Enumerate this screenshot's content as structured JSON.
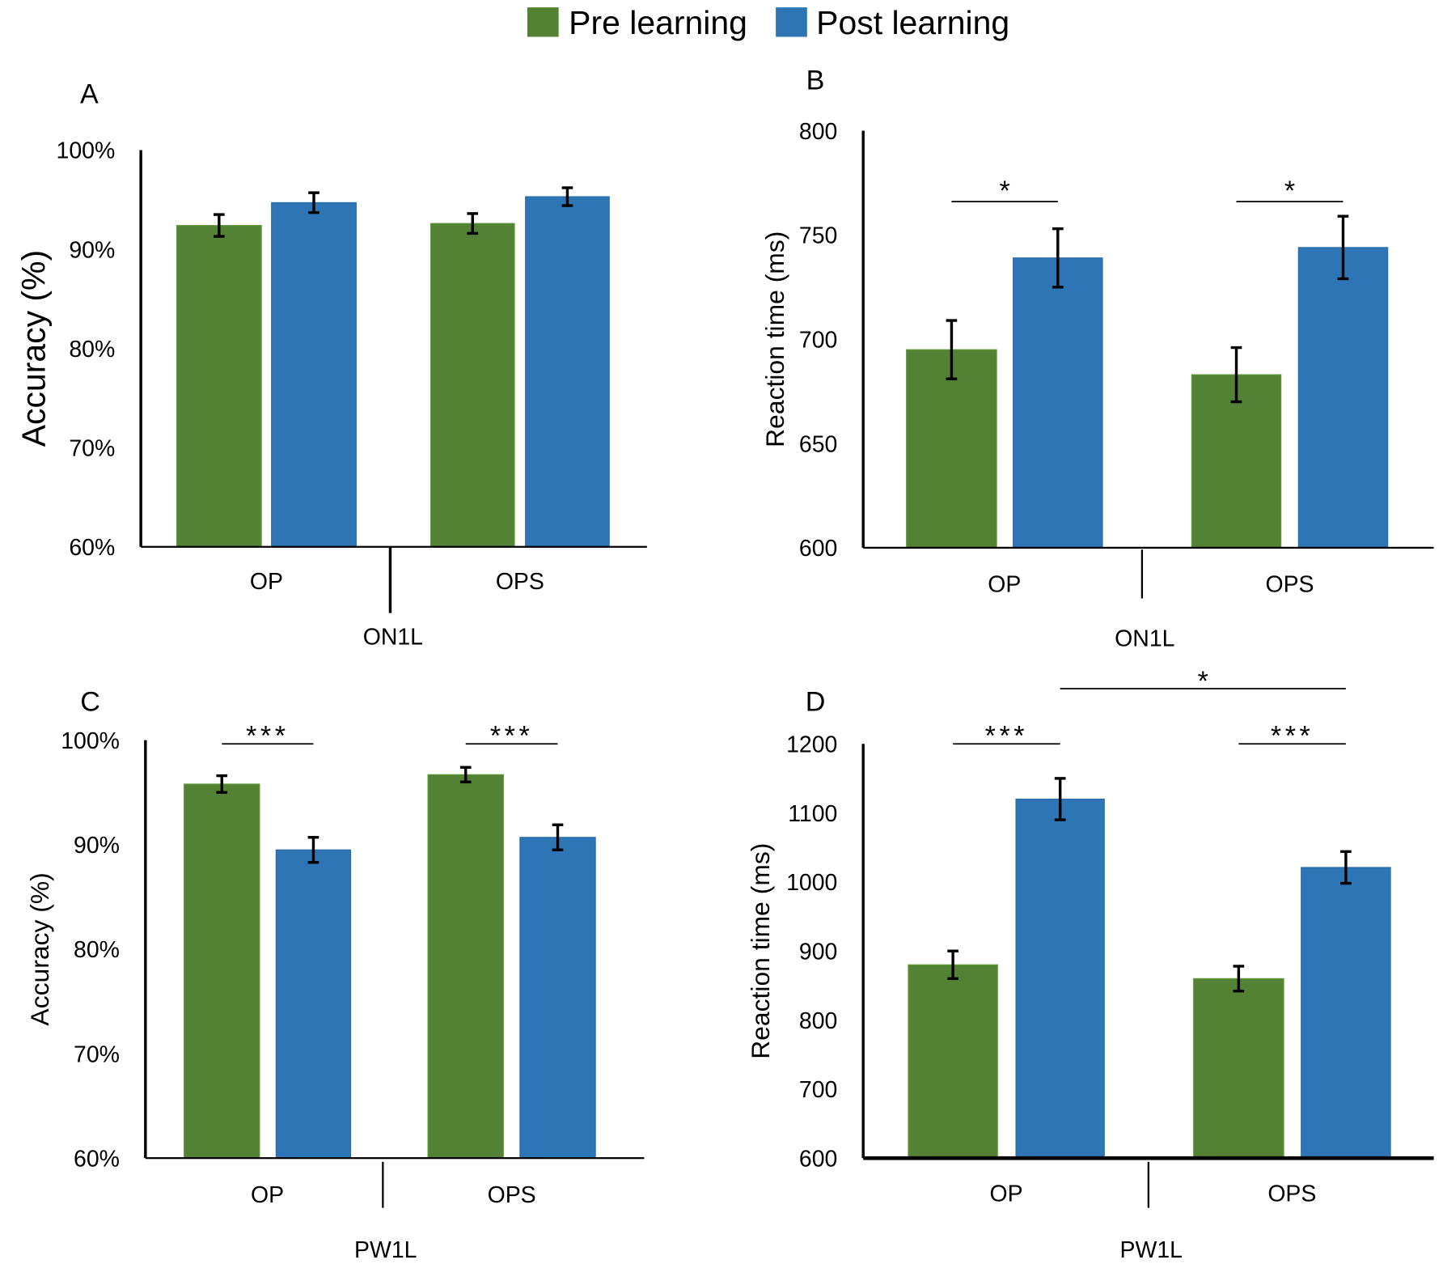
{
  "legend": [
    {
      "label": "Pre learning",
      "color": "#548235"
    },
    {
      "label": "Post learning",
      "color": "#2e75b6"
    }
  ],
  "chart_data": [
    {
      "panel": "A",
      "type": "bar",
      "ylabel": "Accuracy (%)",
      "ylim": [
        60,
        100
      ],
      "yticks": [
        60,
        70,
        80,
        90,
        100
      ],
      "tick_suffix": "%",
      "categories": [
        "OP",
        "OPS"
      ],
      "group_label": "ON1L",
      "series": [
        {
          "name": "Pre learning",
          "values": [
            92.4,
            92.6
          ],
          "errors": [
            1.1,
            1.0
          ]
        },
        {
          "name": "Post learning",
          "values": [
            94.7,
            95.3
          ],
          "errors": [
            1.0,
            0.9
          ]
        }
      ],
      "significance": []
    },
    {
      "panel": "B",
      "type": "bar",
      "ylabel": "Reaction time (ms)",
      "ylim": [
        600,
        800
      ],
      "yticks": [
        600,
        650,
        700,
        750,
        800
      ],
      "tick_suffix": "",
      "categories": [
        "OP",
        "OPS"
      ],
      "group_label": "ON1L",
      "series": [
        {
          "name": "Pre learning",
          "values": [
            695,
            683
          ],
          "errors": [
            14,
            13
          ]
        },
        {
          "name": "Post learning",
          "values": [
            739,
            744
          ],
          "errors": [
            14,
            15
          ]
        }
      ],
      "significance": [
        {
          "label": "*",
          "type": "within",
          "category": 0
        },
        {
          "label": "*",
          "type": "within",
          "category": 1
        }
      ]
    },
    {
      "panel": "C",
      "type": "bar",
      "ylabel": "Accuracy (%)",
      "ylim": [
        60,
        100
      ],
      "yticks": [
        60,
        70,
        80,
        90,
        100
      ],
      "tick_suffix": "%",
      "categories": [
        "OP",
        "OPS"
      ],
      "group_label": "PW1L",
      "series": [
        {
          "name": "Pre learning",
          "values": [
            95.8,
            96.7
          ],
          "errors": [
            0.8,
            0.7
          ]
        },
        {
          "name": "Post learning",
          "values": [
            89.5,
            90.7
          ],
          "errors": [
            1.2,
            1.2
          ]
        }
      ],
      "significance": [
        {
          "label": "***",
          "type": "within",
          "category": 0
        },
        {
          "label": "***",
          "type": "within",
          "category": 1
        }
      ]
    },
    {
      "panel": "D",
      "type": "bar",
      "ylabel": "Reaction time (ms)",
      "ylim": [
        600,
        1200
      ],
      "yticks": [
        600,
        700,
        800,
        900,
        1000,
        1100,
        1200
      ],
      "tick_suffix": "",
      "categories": [
        "OP",
        "OPS"
      ],
      "group_label": "PW1L",
      "series": [
        {
          "name": "Pre learning",
          "values": [
            880,
            860
          ],
          "errors": [
            20,
            18
          ]
        },
        {
          "name": "Post learning",
          "values": [
            1120,
            1021
          ],
          "errors": [
            30,
            23
          ]
        }
      ],
      "significance": [
        {
          "label": "***",
          "type": "within",
          "category": 0
        },
        {
          "label": "***",
          "type": "within",
          "category": 1
        },
        {
          "label": "*",
          "type": "across",
          "category": 0
        }
      ]
    }
  ]
}
